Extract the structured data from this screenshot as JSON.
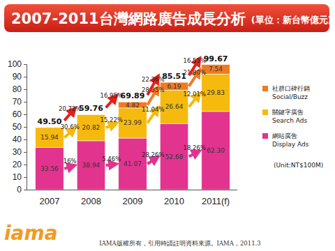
{
  "chart_data": {
    "type": "bar",
    "stacked": true,
    "data_labels": true,
    "grid": false,
    "legend": "right",
    "title": "2007-2011台灣網路廣告成長分析",
    "subtitle": "(單位：新台幣億元)",
    "unit_note": "(Unit:NT$100M)",
    "categories": [
      "2007",
      "2008",
      "2009",
      "2010",
      "2011(f)"
    ],
    "ylim": [
      0,
      100
    ],
    "yticks": [
      0,
      10,
      20,
      30,
      40,
      50,
      60,
      70,
      80,
      90,
      100
    ],
    "series": [
      {
        "name": "網站廣告\nDisplay Ads",
        "color": "#e2338f",
        "values": [
          33.56,
          38.94,
          41.07,
          52.68,
          62.3
        ],
        "value_labels": [
          "33.56",
          "38.94",
          "41.07",
          "52.68",
          "62.30"
        ],
        "growth": [
          16,
          5.46,
          28.26,
          18.26
        ],
        "growth_labels": [
          "16%",
          "5.46%",
          "28.26%",
          "18.26%"
        ]
      },
      {
        "name": "關鍵字廣告\nSearch Ads",
        "color": "#f6b90e",
        "values": [
          15.94,
          20.82,
          23.99,
          26.64,
          29.83
        ],
        "growth": [
          30.6,
          15.22,
          11.04,
          12.01
        ],
        "growth_labels": [
          "30.6%",
          "15.22%",
          "11.04%",
          "12.01%"
        ]
      },
      {
        "name": "社群口碑行銷\nSocial/Buzz",
        "color": "#f07a22",
        "values": [
          null,
          null,
          4.82,
          6.19,
          7.54
        ],
        "growth": [
          null,
          null,
          28.35,
          21.8
        ],
        "growth_labels": [
          null,
          null,
          "28.35%",
          "21.80%"
        ]
      }
    ],
    "totals": {
      "color": "#e3211c",
      "values": [
        49.5,
        59.76,
        69.89,
        85.51,
        99.67
      ],
      "value_labels": [
        "49.50",
        "59.76",
        "69.89",
        "85.51",
        "99.67"
      ],
      "growth": [
        20.72,
        16.95,
        22.36,
        16.55
      ],
      "growth_labels": [
        "20.72%",
        "16.95%",
        "22.36%",
        "16.55%"
      ]
    }
  },
  "footer": "IAMA版權所有，引用時請註明資料來源。IAMA，2011.3",
  "logo": "iama"
}
